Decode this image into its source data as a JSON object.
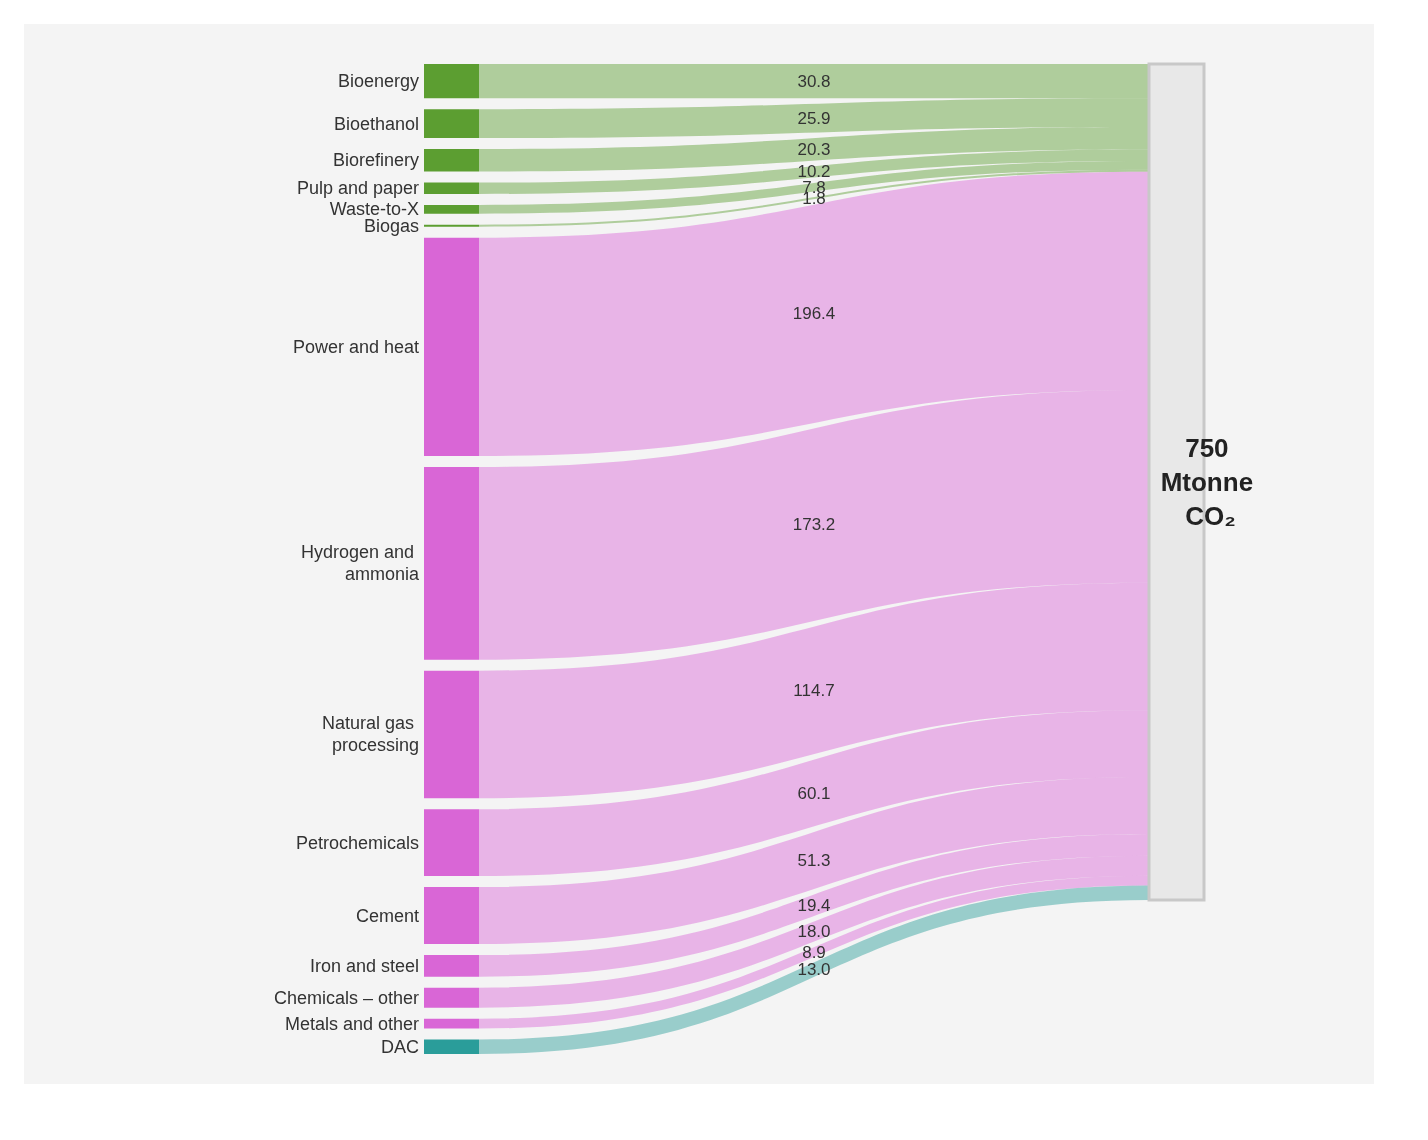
{
  "chart_data": {
    "type": "other",
    "categories": [
      "Bioenergy",
      "Bioethanol",
      "Biorefinery",
      "Pulp and paper",
      "Waste-to-X",
      "Biogas",
      "Power and heat",
      "Hydrogen and ammonia",
      "Natural gas processing",
      "Petrochemicals",
      "Cement",
      "Iron and steel",
      "Chemicals – other",
      "Metals and other",
      "DAC"
    ],
    "values": [
      30.8,
      25.9,
      20.3,
      10.2,
      7.8,
      1.8,
      196.4,
      173.2,
      114.7,
      60.1,
      51.3,
      19.4,
      18.0,
      8.9,
      13.0
    ],
    "colors": [
      "#5c9e31",
      "#5c9e31",
      "#5c9e31",
      "#5c9e31",
      "#5c9e31",
      "#5c9e31",
      "#d966d6",
      "#d966d6",
      "#d966d6",
      "#d966d6",
      "#d966d6",
      "#d966d6",
      "#d966d6",
      "#d966d6",
      "#2a9d9a"
    ],
    "value_labels": [
      "30.8",
      "25.9",
      "20.3",
      "10.2",
      "7.8",
      "1.8",
      "196.4",
      "173.2",
      "114.7",
      "60.1",
      "51.3",
      "19.4",
      "18.0",
      "8.9",
      "13.0"
    ],
    "annotations": [
      "750 Mtonne CO₂"
    ]
  }
}
